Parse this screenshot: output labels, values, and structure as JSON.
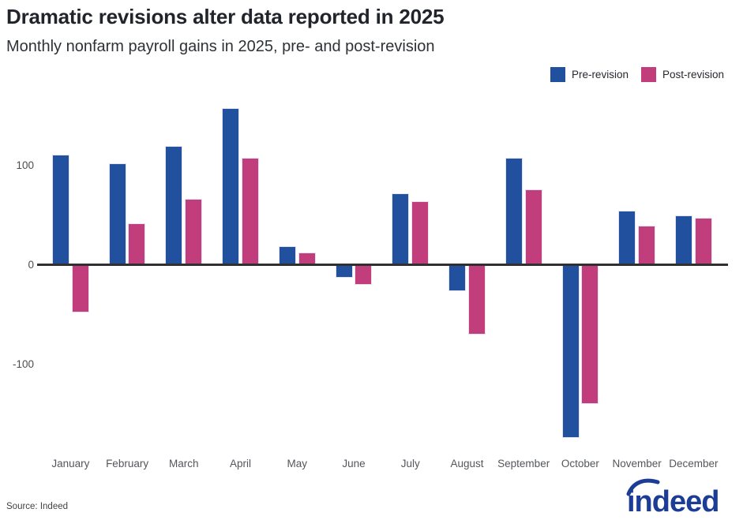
{
  "header": {
    "title": "Dramatic revisions alter data reported in 2025",
    "subtitle": "Monthly nonfarm payroll gains in 2025, pre- and post-revision"
  },
  "chart_data": {
    "type": "bar",
    "title": "Dramatic revisions alter data reported in 2025",
    "subtitle": "Monthly nonfarm payroll gains in 2025, pre- and post-revision",
    "categories": [
      "January",
      "February",
      "March",
      "April",
      "May",
      "June",
      "July",
      "August",
      "September",
      "October",
      "November",
      "December"
    ],
    "series": [
      {
        "name": "Pre-revision",
        "color": "#21519E",
        "values": [
          111,
          102,
          120,
          158,
          19,
          -13,
          72,
          -26,
          108,
          -174,
          55,
          50
        ]
      },
      {
        "name": "Post-revision",
        "color": "#C23D7C",
        "values": [
          -48,
          42,
          67,
          108,
          13,
          -20,
          64,
          -70,
          76,
          -140,
          40,
          48
        ]
      }
    ],
    "xlabel": "",
    "ylabel": "",
    "y_axis": {
      "ticks": [
        100,
        0,
        -100
      ],
      "ylim": [
        -185,
        165
      ]
    },
    "grid": false,
    "legend_position": "top-right",
    "zero_line_color": "#303030"
  },
  "footer": {
    "source": "Source: Indeed",
    "logo_text": "indeed",
    "logo_color": "#1C3D96"
  }
}
